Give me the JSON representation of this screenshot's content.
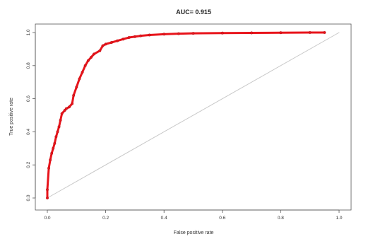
{
  "chart_data": {
    "type": "line",
    "title": "AUC= 0.915",
    "xlabel": "False positive rate",
    "ylabel": "True positive rate",
    "xlim": [
      0,
      1
    ],
    "ylim": [
      0,
      1
    ],
    "x_ticks": [
      "0.0",
      "0.2",
      "0.4",
      "0.6",
      "0.8",
      "1.0"
    ],
    "y_ticks": [
      "0.0",
      "0.2",
      "0.4",
      "0.6",
      "0.8",
      "1.0"
    ],
    "grid": false,
    "legend": "none",
    "series": [
      {
        "color": "#e8141b",
        "x": [
          0.0,
          0.0,
          0.005,
          0.01,
          0.015,
          0.02,
          0.025,
          0.03,
          0.035,
          0.04,
          0.045,
          0.05,
          0.06,
          0.065,
          0.075,
          0.085,
          0.09,
          0.1,
          0.11,
          0.12,
          0.13,
          0.14,
          0.15,
          0.16,
          0.18,
          0.19,
          0.2,
          0.22,
          0.24,
          0.26,
          0.28,
          0.3,
          0.32,
          0.35,
          0.4,
          0.45,
          0.5,
          0.6,
          0.7,
          0.8,
          0.9,
          0.95
        ],
        "y": [
          0.0,
          0.05,
          0.18,
          0.23,
          0.27,
          0.3,
          0.33,
          0.37,
          0.4,
          0.43,
          0.47,
          0.51,
          0.53,
          0.54,
          0.55,
          0.57,
          0.62,
          0.67,
          0.72,
          0.76,
          0.8,
          0.83,
          0.85,
          0.87,
          0.89,
          0.92,
          0.93,
          0.94,
          0.95,
          0.96,
          0.97,
          0.975,
          0.98,
          0.985,
          0.99,
          0.993,
          0.995,
          0.997,
          0.998,
          0.999,
          1.0,
          1.0
        ]
      },
      {
        "color": "#c8c8c8",
        "x": [
          0,
          1
        ],
        "y": [
          0,
          1
        ]
      }
    ]
  }
}
